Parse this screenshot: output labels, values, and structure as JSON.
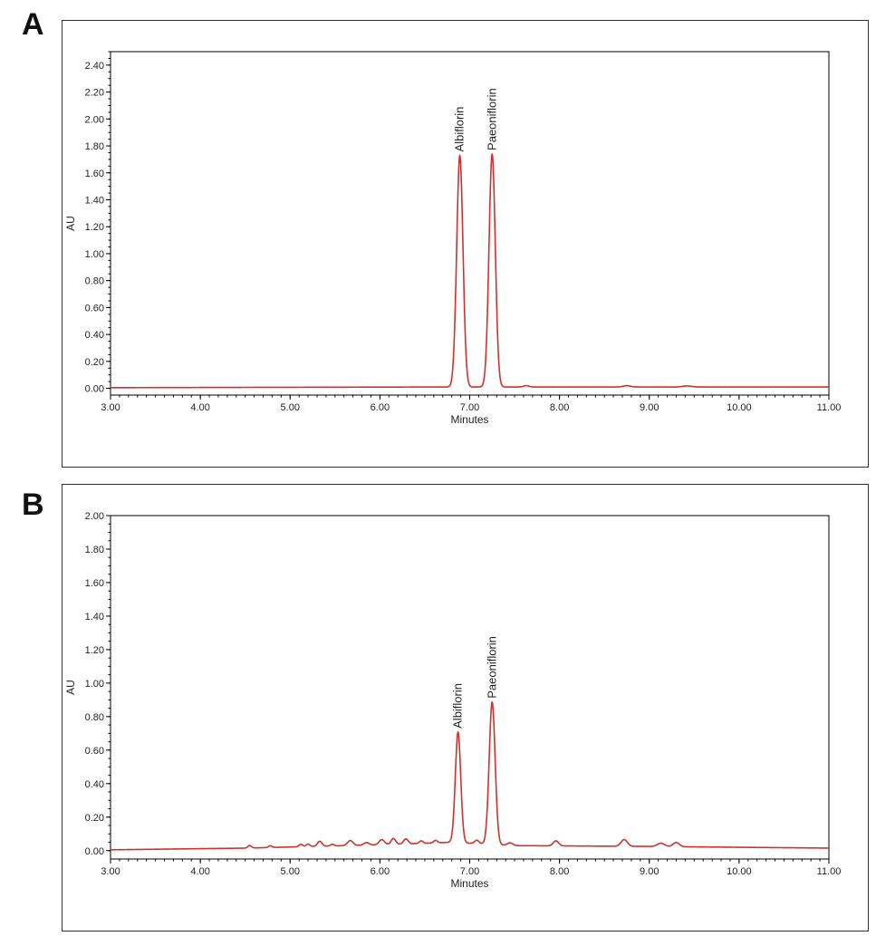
{
  "panels": [
    {
      "letter": "A"
    },
    {
      "letter": "B"
    }
  ],
  "colors": {
    "trace": "#d0312d",
    "axis": "#000000"
  },
  "chart_data": [
    {
      "type": "line",
      "panel": "A",
      "xlabel": "Minutes",
      "ylabel": "AU",
      "xlim": [
        3.0,
        11.0
      ],
      "ylim": [
        -0.05,
        2.5
      ],
      "x_ticks": [
        "3.00",
        "4.00",
        "5.00",
        "6.00",
        "7.00",
        "8.00",
        "9.00",
        "10.00",
        "11.00"
      ],
      "y_ticks": [
        "0.00",
        "0.20",
        "0.40",
        "0.60",
        "0.80",
        "1.00",
        "1.20",
        "1.40",
        "1.60",
        "1.80",
        "2.00",
        "2.20",
        "2.40"
      ],
      "baseline": [
        [
          3.0,
          0.005
        ],
        [
          6.5,
          0.01
        ],
        [
          11.0,
          0.01
        ]
      ],
      "peaks": [
        {
          "label": "Albiflorin",
          "rt": 6.89,
          "height": 1.72,
          "width": 0.035
        },
        {
          "label": "Paeoniflorin",
          "rt": 7.25,
          "height": 1.73,
          "width": 0.035
        },
        {
          "label": "",
          "rt": 7.63,
          "height": 0.01,
          "width": 0.03
        },
        {
          "label": "",
          "rt": 8.75,
          "height": 0.01,
          "width": 0.04
        },
        {
          "label": "",
          "rt": 9.42,
          "height": 0.008,
          "width": 0.05
        }
      ],
      "grid": false,
      "legend": "none"
    },
    {
      "type": "line",
      "panel": "B",
      "xlabel": "Minutes",
      "ylabel": "AU",
      "xlim": [
        3.0,
        11.0
      ],
      "ylim": [
        -0.05,
        2.0
      ],
      "x_ticks": [
        "3.00",
        "4.00",
        "5.00",
        "6.00",
        "7.00",
        "8.00",
        "9.00",
        "10.00",
        "11.00"
      ],
      "y_ticks": [
        "0.00",
        "0.20",
        "0.40",
        "0.60",
        "0.80",
        "1.00",
        "1.20",
        "1.40",
        "1.60",
        "1.80",
        "2.00"
      ],
      "baseline": [
        [
          3.0,
          0.005
        ],
        [
          4.5,
          0.015
        ],
        [
          6.0,
          0.035
        ],
        [
          6.8,
          0.05
        ],
        [
          7.5,
          0.03
        ],
        [
          9.0,
          0.025
        ],
        [
          11.0,
          0.015
        ]
      ],
      "peaks": [
        {
          "label": "Albiflorin",
          "rt": 6.87,
          "height": 0.66,
          "width": 0.03
        },
        {
          "label": "Paeoniflorin",
          "rt": 7.25,
          "height": 0.85,
          "width": 0.033
        },
        {
          "label": "",
          "rt": 4.55,
          "height": 0.015,
          "width": 0.02
        },
        {
          "label": "",
          "rt": 4.78,
          "height": 0.01,
          "width": 0.02
        },
        {
          "label": "",
          "rt": 5.12,
          "height": 0.015,
          "width": 0.02
        },
        {
          "label": "",
          "rt": 5.2,
          "height": 0.015,
          "width": 0.02
        },
        {
          "label": "",
          "rt": 5.33,
          "height": 0.03,
          "width": 0.025
        },
        {
          "label": "",
          "rt": 5.47,
          "height": 0.01,
          "width": 0.02
        },
        {
          "label": "",
          "rt": 5.67,
          "height": 0.03,
          "width": 0.03
        },
        {
          "label": "",
          "rt": 5.85,
          "height": 0.015,
          "width": 0.03
        },
        {
          "label": "",
          "rt": 6.02,
          "height": 0.03,
          "width": 0.03
        },
        {
          "label": "",
          "rt": 6.15,
          "height": 0.035,
          "width": 0.025
        },
        {
          "label": "",
          "rt": 6.29,
          "height": 0.03,
          "width": 0.025
        },
        {
          "label": "",
          "rt": 6.46,
          "height": 0.015,
          "width": 0.02
        },
        {
          "label": "",
          "rt": 6.62,
          "height": 0.015,
          "width": 0.02
        },
        {
          "label": "",
          "rt": 7.08,
          "height": 0.02,
          "width": 0.025
        },
        {
          "label": "",
          "rt": 7.45,
          "height": 0.015,
          "width": 0.03
        },
        {
          "label": "",
          "rt": 7.96,
          "height": 0.03,
          "width": 0.03
        },
        {
          "label": "",
          "rt": 8.72,
          "height": 0.04,
          "width": 0.035
        },
        {
          "label": "",
          "rt": 9.13,
          "height": 0.02,
          "width": 0.04
        },
        {
          "label": "",
          "rt": 9.3,
          "height": 0.025,
          "width": 0.035
        }
      ],
      "grid": false,
      "legend": "none"
    }
  ]
}
